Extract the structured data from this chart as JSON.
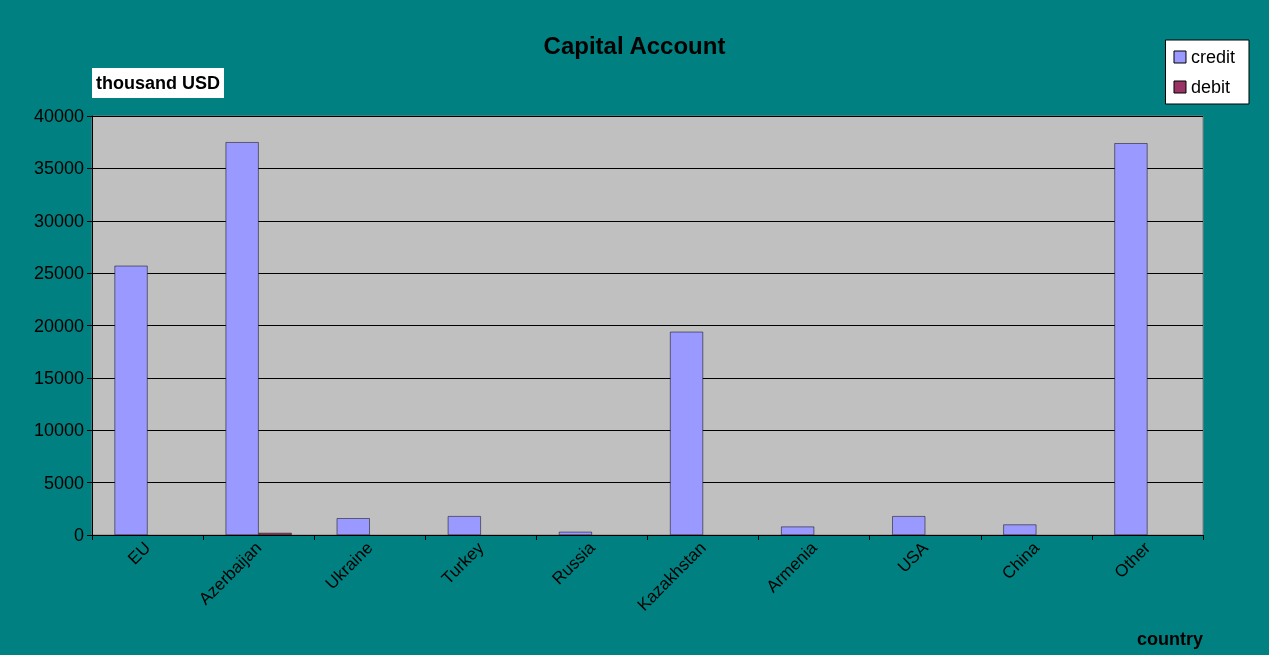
{
  "chart_data": {
    "type": "bar",
    "title": "Capital Account",
    "xlabel": "country",
    "ylabel": "thousand USD",
    "categories": [
      "EU",
      "Azerbaijan",
      "Ukraine",
      "Turkey",
      "Russia",
      "Kazakhstan",
      "Armenia",
      "USA",
      "China",
      "Other"
    ],
    "series": [
      {
        "name": "credit",
        "color": "#9999ff",
        "values": [
          25700,
          37500,
          1600,
          1800,
          300,
          19400,
          800,
          1800,
          1000,
          37400
        ]
      },
      {
        "name": "debit",
        "color": "#993366",
        "values": [
          null,
          200,
          null,
          null,
          null,
          null,
          null,
          null,
          null,
          null
        ]
      }
    ],
    "ylim": [
      0,
      40000
    ],
    "yticks": [
      0,
      5000,
      10000,
      15000,
      20000,
      25000,
      30000,
      35000,
      40000
    ],
    "grid": "y",
    "legend": "top right"
  }
}
